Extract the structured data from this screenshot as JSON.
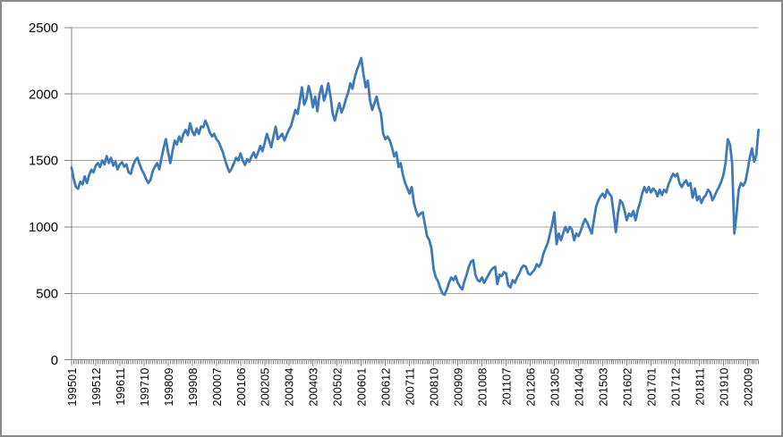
{
  "chart_data": {
    "type": "line",
    "title": "",
    "xlabel": "",
    "ylabel": "",
    "legend": "none",
    "grid": "horizontal",
    "ylim": [
      0,
      2500
    ],
    "y_ticks": [
      0,
      500,
      1000,
      1500,
      2000,
      2500
    ],
    "y_tick_labels": [
      "0",
      "500",
      "1000",
      "1500",
      "2000",
      "2500"
    ],
    "x_start_period": "199501",
    "x_label_interval_months": 11,
    "x_tick_labels": [
      "199501",
      "199512",
      "199611",
      "199710",
      "199809",
      "199908",
      "200007",
      "200106",
      "200205",
      "200304",
      "200403",
      "200502",
      "200601",
      "200612",
      "200711",
      "200810",
      "200909",
      "201008",
      "201107",
      "201206",
      "201305",
      "201404",
      "201503",
      "201602",
      "201701",
      "201712",
      "201811",
      "201910",
      "202009"
    ],
    "series": [
      {
        "name": "",
        "frequency": "monthly",
        "values": [
          1447,
          1360,
          1300,
          1287,
          1340,
          1320,
          1380,
          1330,
          1390,
          1430,
          1410,
          1460,
          1480,
          1450,
          1500,
          1470,
          1533,
          1480,
          1520,
          1460,
          1490,
          1433,
          1470,
          1487,
          1453,
          1470,
          1410,
          1400,
          1460,
          1500,
          1520,
          1470,
          1430,
          1400,
          1360,
          1330,
          1353,
          1420,
          1453,
          1480,
          1433,
          1520,
          1600,
          1660,
          1560,
          1480,
          1570,
          1650,
          1620,
          1680,
          1640,
          1700,
          1730,
          1690,
          1780,
          1720,
          1690,
          1740,
          1700,
          1755,
          1750,
          1800,
          1760,
          1710,
          1680,
          1700,
          1660,
          1640,
          1600,
          1560,
          1500,
          1450,
          1413,
          1440,
          1480,
          1520,
          1500,
          1553,
          1500,
          1467,
          1510,
          1490,
          1530,
          1560,
          1520,
          1560,
          1610,
          1570,
          1630,
          1700,
          1650,
          1600,
          1680,
          1753,
          1660,
          1680,
          1700,
          1650,
          1690,
          1730,
          1760,
          1820,
          1880,
          1850,
          1950,
          2050,
          1920,
          1960,
          2060,
          2000,
          1900,
          1980,
          1870,
          2000,
          2060,
          1950,
          2000,
          2080,
          1980,
          1850,
          1800,
          1870,
          1930,
          1860,
          1900,
          1960,
          2010,
          2080,
          2040,
          2120,
          2180,
          2220,
          2270,
          2150,
          2050,
          2100,
          1950,
          1880,
          1930,
          1980,
          1900,
          1850,
          1700,
          1660,
          1680,
          1650,
          1600,
          1530,
          1560,
          1450,
          1480,
          1390,
          1330,
          1290,
          1250,
          1300,
          1180,
          1120,
          1080,
          1100,
          1110,
          1020,
          930,
          900,
          840,
          680,
          620,
          590,
          540,
          500,
          490,
          530,
          580,
          620,
          600,
          630,
          580,
          550,
          530,
          590,
          640,
          700,
          740,
          750,
          640,
          600,
          590,
          620,
          580,
          610,
          640,
          670,
          690,
          700,
          570,
          640,
          630,
          660,
          650,
          560,
          545,
          600,
          580,
          620,
          650,
          690,
          710,
          700,
          650,
          640,
          660,
          680,
          720,
          700,
          730,
          800,
          840,
          880,
          950,
          1020,
          1110,
          870,
          950,
          900,
          950,
          1000,
          960,
          1000,
          980,
          900,
          950,
          930,
          970,
          1020,
          1060,
          1030,
          990,
          950,
          1050,
          1150,
          1200,
          1230,
          1250,
          1220,
          1280,
          1250,
          1230,
          1100,
          960,
          1100,
          1200,
          1180,
          1120,
          1050,
          1100,
          1080,
          1120,
          1050,
          1130,
          1180,
          1250,
          1300,
          1260,
          1300,
          1260,
          1290,
          1270,
          1230,
          1280,
          1240,
          1280,
          1260,
          1320,
          1360,
          1400,
          1380,
          1400,
          1330,
          1300,
          1330,
          1350,
          1310,
          1330,
          1220,
          1290,
          1200,
          1230,
          1180,
          1220,
          1240,
          1280,
          1260,
          1200,
          1230,
          1270,
          1300,
          1340,
          1390,
          1480,
          1660,
          1620,
          1480,
          950,
          1100,
          1280,
          1330,
          1310,
          1340,
          1420,
          1520,
          1590,
          1490,
          1540,
          1730
        ]
      }
    ],
    "colors": {
      "line": "#3E79B8",
      "gridline": "#A6A6A6",
      "axis": "#808080",
      "tick": "#808080",
      "text": "#000000",
      "frame_border": "#8A8A8A",
      "background": "#FFFFFF"
    }
  }
}
